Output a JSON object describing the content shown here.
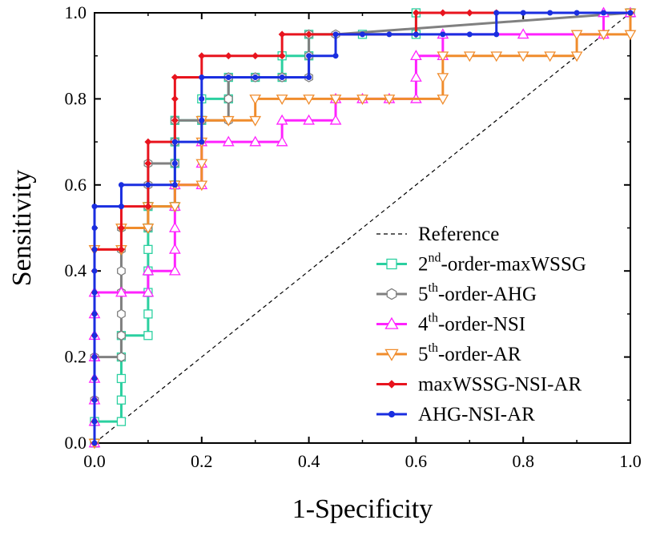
{
  "chart_data": {
    "type": "line",
    "title": "",
    "xlabel": "1-Specificity",
    "ylabel": "Sensitivity",
    "xlim": [
      0,
      1
    ],
    "ylim": [
      0,
      1
    ],
    "x_ticks": [
      "0.0",
      "0.2",
      "0.4",
      "0.6",
      "0.8",
      "1.0"
    ],
    "y_ticks": [
      "0.0",
      "0.2",
      "0.4",
      "0.6",
      "0.8",
      "1.0"
    ],
    "grid": false,
    "legend_position": "bottom-right",
    "reference": {
      "name": "Reference",
      "color": "#000000",
      "style": "dashed",
      "points": [
        [
          0,
          0
        ],
        [
          1,
          1
        ]
      ]
    },
    "series": [
      {
        "name": "2nd-order-maxWSSG",
        "legend_base": "2",
        "legend_sup": "nd",
        "legend_rest": "-order-maxWSSG",
        "color": "#2bd0a0",
        "marker": "square",
        "points": [
          [
            0,
            0
          ],
          [
            0,
            0.05
          ],
          [
            0.05,
            0.05
          ],
          [
            0.05,
            0.1
          ],
          [
            0.05,
            0.15
          ],
          [
            0.05,
            0.2
          ],
          [
            0.05,
            0.25
          ],
          [
            0.1,
            0.25
          ],
          [
            0.1,
            0.3
          ],
          [
            0.1,
            0.35
          ],
          [
            0.1,
            0.4
          ],
          [
            0.1,
            0.45
          ],
          [
            0.1,
            0.5
          ],
          [
            0.1,
            0.55
          ],
          [
            0.15,
            0.55
          ],
          [
            0.15,
            0.6
          ],
          [
            0.15,
            0.65
          ],
          [
            0.15,
            0.7
          ],
          [
            0.15,
            0.75
          ],
          [
            0.2,
            0.75
          ],
          [
            0.2,
            0.8
          ],
          [
            0.25,
            0.8
          ],
          [
            0.25,
            0.85
          ],
          [
            0.3,
            0.85
          ],
          [
            0.35,
            0.85
          ],
          [
            0.35,
            0.9
          ],
          [
            0.4,
            0.9
          ],
          [
            0.4,
            0.95
          ],
          [
            0.5,
            0.95
          ],
          [
            0.6,
            0.95
          ],
          [
            0.6,
            1
          ],
          [
            1,
            1
          ]
        ]
      },
      {
        "name": "5th-order-AHG",
        "legend_base": "5",
        "legend_sup": "th",
        "legend_rest": "-order-AHG",
        "color": "#808080",
        "marker": "hexagon",
        "points": [
          [
            0,
            0
          ],
          [
            0,
            0.1
          ],
          [
            0,
            0.2
          ],
          [
            0.05,
            0.2
          ],
          [
            0.05,
            0.25
          ],
          [
            0.05,
            0.3
          ],
          [
            0.05,
            0.35
          ],
          [
            0.05,
            0.4
          ],
          [
            0.05,
            0.45
          ],
          [
            0.05,
            0.5
          ],
          [
            0.1,
            0.5
          ],
          [
            0.1,
            0.55
          ],
          [
            0.1,
            0.6
          ],
          [
            0.1,
            0.65
          ],
          [
            0.15,
            0.65
          ],
          [
            0.15,
            0.7
          ],
          [
            0.15,
            0.75
          ],
          [
            0.2,
            0.75
          ],
          [
            0.25,
            0.75
          ],
          [
            0.25,
            0.8
          ],
          [
            0.25,
            0.85
          ],
          [
            0.3,
            0.85
          ],
          [
            0.35,
            0.85
          ],
          [
            0.4,
            0.85
          ],
          [
            0.4,
            0.9
          ],
          [
            0.4,
            0.95
          ],
          [
            0.45,
            0.95
          ],
          [
            1,
            1
          ]
        ]
      },
      {
        "name": "4th-order-NSI",
        "legend_base": "4",
        "legend_sup": "th",
        "legend_rest": "-order-NSI",
        "color": "#ff22ff",
        "marker": "triangle-up",
        "points": [
          [
            0,
            0
          ],
          [
            0,
            0.05
          ],
          [
            0,
            0.1
          ],
          [
            0,
            0.15
          ],
          [
            0,
            0.2
          ],
          [
            0,
            0.25
          ],
          [
            0,
            0.3
          ],
          [
            0,
            0.35
          ],
          [
            0.05,
            0.35
          ],
          [
            0.1,
            0.35
          ],
          [
            0.1,
            0.4
          ],
          [
            0.15,
            0.4
          ],
          [
            0.15,
            0.45
          ],
          [
            0.15,
            0.5
          ],
          [
            0.15,
            0.55
          ],
          [
            0.15,
            0.6
          ],
          [
            0.2,
            0.6
          ],
          [
            0.2,
            0.65
          ],
          [
            0.2,
            0.7
          ],
          [
            0.25,
            0.7
          ],
          [
            0.3,
            0.7
          ],
          [
            0.35,
            0.7
          ],
          [
            0.35,
            0.75
          ],
          [
            0.4,
            0.75
          ],
          [
            0.45,
            0.75
          ],
          [
            0.45,
            0.8
          ],
          [
            0.5,
            0.8
          ],
          [
            0.55,
            0.8
          ],
          [
            0.6,
            0.8
          ],
          [
            0.6,
            0.85
          ],
          [
            0.6,
            0.9
          ],
          [
            0.65,
            0.9
          ],
          [
            0.65,
            0.95
          ],
          [
            0.8,
            0.95
          ],
          [
            0.95,
            0.95
          ],
          [
            0.95,
            1
          ],
          [
            1,
            1
          ]
        ]
      },
      {
        "name": "5th-order-AR",
        "legend_base": "5",
        "legend_sup": "th",
        "legend_rest": "-order-AR",
        "color": "#f08c2c",
        "marker": "triangle-down",
        "points": [
          [
            0,
            0
          ],
          [
            0,
            0.45
          ],
          [
            0.05,
            0.45
          ],
          [
            0.05,
            0.5
          ],
          [
            0.1,
            0.5
          ],
          [
            0.1,
            0.55
          ],
          [
            0.15,
            0.55
          ],
          [
            0.15,
            0.6
          ],
          [
            0.2,
            0.6
          ],
          [
            0.2,
            0.65
          ],
          [
            0.2,
            0.7
          ],
          [
            0.2,
            0.75
          ],
          [
            0.25,
            0.75
          ],
          [
            0.3,
            0.75
          ],
          [
            0.3,
            0.8
          ],
          [
            0.35,
            0.8
          ],
          [
            0.4,
            0.8
          ],
          [
            0.45,
            0.8
          ],
          [
            0.5,
            0.8
          ],
          [
            0.55,
            0.8
          ],
          [
            0.65,
            0.8
          ],
          [
            0.65,
            0.85
          ],
          [
            0.65,
            0.9
          ],
          [
            0.7,
            0.9
          ],
          [
            0.75,
            0.9
          ],
          [
            0.8,
            0.9
          ],
          [
            0.85,
            0.9
          ],
          [
            0.9,
            0.9
          ],
          [
            0.9,
            0.95
          ],
          [
            0.95,
            0.95
          ],
          [
            1,
            0.95
          ],
          [
            1,
            1
          ]
        ]
      },
      {
        "name": "maxWSSG-NSI-AR",
        "legend_base": "maxWSSG-NSI-AR",
        "legend_sup": "",
        "legend_rest": "",
        "color": "#e8141e",
        "marker": "diamond",
        "points": [
          [
            0,
            0
          ],
          [
            0,
            0.05
          ],
          [
            0,
            0.1
          ],
          [
            0,
            0.15
          ],
          [
            0,
            0.2
          ],
          [
            0,
            0.25
          ],
          [
            0,
            0.3
          ],
          [
            0,
            0.35
          ],
          [
            0,
            0.4
          ],
          [
            0,
            0.45
          ],
          [
            0.05,
            0.45
          ],
          [
            0.05,
            0.5
          ],
          [
            0.05,
            0.55
          ],
          [
            0.1,
            0.55
          ],
          [
            0.1,
            0.6
          ],
          [
            0.1,
            0.65
          ],
          [
            0.1,
            0.7
          ],
          [
            0.15,
            0.7
          ],
          [
            0.15,
            0.75
          ],
          [
            0.15,
            0.8
          ],
          [
            0.15,
            0.85
          ],
          [
            0.2,
            0.85
          ],
          [
            0.2,
            0.9
          ],
          [
            0.25,
            0.9
          ],
          [
            0.3,
            0.9
          ],
          [
            0.35,
            0.9
          ],
          [
            0.35,
            0.95
          ],
          [
            0.4,
            0.95
          ],
          [
            0.6,
            0.95
          ],
          [
            0.6,
            1
          ],
          [
            0.65,
            1
          ],
          [
            0.7,
            1
          ],
          [
            0.75,
            1
          ],
          [
            1,
            1
          ]
        ]
      },
      {
        "name": "AHG-NSI-AR",
        "legend_base": "AHG-NSI-AR",
        "legend_sup": "",
        "legend_rest": "",
        "color": "#1a2ee0",
        "marker": "circle",
        "points": [
          [
            0,
            0
          ],
          [
            0,
            0.05
          ],
          [
            0,
            0.1
          ],
          [
            0,
            0.15
          ],
          [
            0,
            0.2
          ],
          [
            0,
            0.25
          ],
          [
            0,
            0.3
          ],
          [
            0,
            0.35
          ],
          [
            0,
            0.4
          ],
          [
            0,
            0.45
          ],
          [
            0,
            0.5
          ],
          [
            0,
            0.55
          ],
          [
            0.05,
            0.55
          ],
          [
            0.05,
            0.6
          ],
          [
            0.1,
            0.6
          ],
          [
            0.15,
            0.6
          ],
          [
            0.15,
            0.65
          ],
          [
            0.15,
            0.7
          ],
          [
            0.2,
            0.7
          ],
          [
            0.2,
            0.75
          ],
          [
            0.2,
            0.8
          ],
          [
            0.2,
            0.85
          ],
          [
            0.25,
            0.85
          ],
          [
            0.3,
            0.85
          ],
          [
            0.35,
            0.85
          ],
          [
            0.4,
            0.85
          ],
          [
            0.4,
            0.9
          ],
          [
            0.45,
            0.9
          ],
          [
            0.45,
            0.95
          ],
          [
            0.5,
            0.95
          ],
          [
            0.55,
            0.95
          ],
          [
            0.6,
            0.95
          ],
          [
            0.65,
            0.95
          ],
          [
            0.7,
            0.95
          ],
          [
            0.75,
            0.95
          ],
          [
            0.75,
            1
          ],
          [
            0.8,
            1
          ],
          [
            0.85,
            1
          ],
          [
            0.9,
            1
          ],
          [
            0.95,
            1
          ],
          [
            1,
            1
          ]
        ]
      }
    ]
  }
}
